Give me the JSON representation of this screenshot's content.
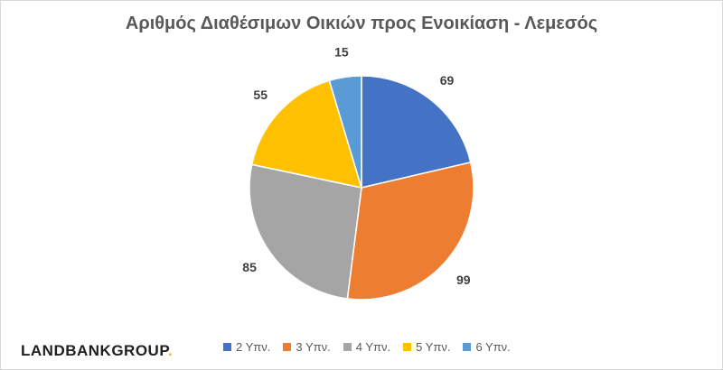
{
  "chart_data": {
    "type": "pie",
    "title": "Αριθμός Διαθέσιμων Οικιών προς Ενοικίαση - Λεμεσός",
    "categories": [
      "2 Υπν.",
      "3 Υπν.",
      "4 Υπν.",
      "5 Υπν.",
      "6 Υπν."
    ],
    "values": [
      69,
      99,
      85,
      55,
      15
    ],
    "colors": [
      "#4472c4",
      "#ed7d31",
      "#a5a5a5",
      "#ffc000",
      "#5b9bd5"
    ],
    "legend": "bottom"
  },
  "logo": {
    "text_main": "LANDBANKGROUP",
    "text_dot": "."
  }
}
